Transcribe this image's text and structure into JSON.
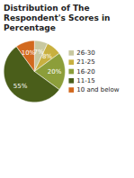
{
  "chart_data": {
    "type": "pie",
    "title": "Distribution of The Respondent's Scores in Percentage",
    "categories": [
      "26-30",
      "21-25",
      "16-20",
      "11-15",
      "10 and below"
    ],
    "values": [
      7,
      8,
      20,
      55,
      10
    ],
    "value_labels": [
      "7%",
      "8%",
      "20%",
      "55%",
      "10%"
    ],
    "colors": [
      "#c8c8a0",
      "#c8b040",
      "#8c9e3a",
      "#4a5e1a",
      "#d2691e"
    ],
    "data_labels": true,
    "legend": "right"
  }
}
